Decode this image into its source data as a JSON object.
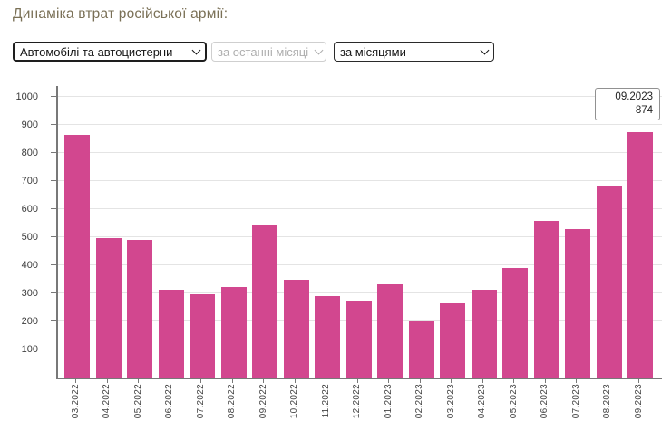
{
  "page": {
    "title": "Динаміка втрат російської армії:"
  },
  "controls": {
    "category_select": {
      "value": "Автомобілі та автоцистерни",
      "state": "enabled"
    },
    "period_select": {
      "value": "за останні місяці",
      "state": "disabled"
    },
    "grouping_select": {
      "value": "за місяцями",
      "state": "enabled"
    }
  },
  "tooltip": {
    "month": "09.2023",
    "value": "874"
  },
  "chart_data": {
    "type": "bar",
    "title": "",
    "categories": [
      "03.2022",
      "04.2022",
      "05.2022",
      "06.2022",
      "07.2022",
      "08.2022",
      "09.2022",
      "10.2022",
      "11.2022",
      "12.2022",
      "01.2023",
      "02.2023",
      "03.2023",
      "04.2023",
      "05.2023",
      "06.2023",
      "07.2023",
      "08.2023",
      "09.2023"
    ],
    "values": [
      866,
      497,
      490,
      312,
      298,
      323,
      541,
      350,
      291,
      275,
      333,
      199,
      265,
      313,
      389,
      558,
      528,
      684,
      874
    ],
    "xlabel": "",
    "ylabel": "",
    "ylim": [
      0,
      1000
    ],
    "yticks": [
      100,
      200,
      300,
      400,
      500,
      600,
      700,
      800,
      900,
      1000
    ],
    "grid": true,
    "legend": "none",
    "highlighted_category": "09.2023"
  },
  "colors": {
    "bar": "#d2478f",
    "title": "#7a7056",
    "axis": "#787878",
    "grid": "#e4e4e4",
    "tick_label": "#3c3c3c"
  }
}
